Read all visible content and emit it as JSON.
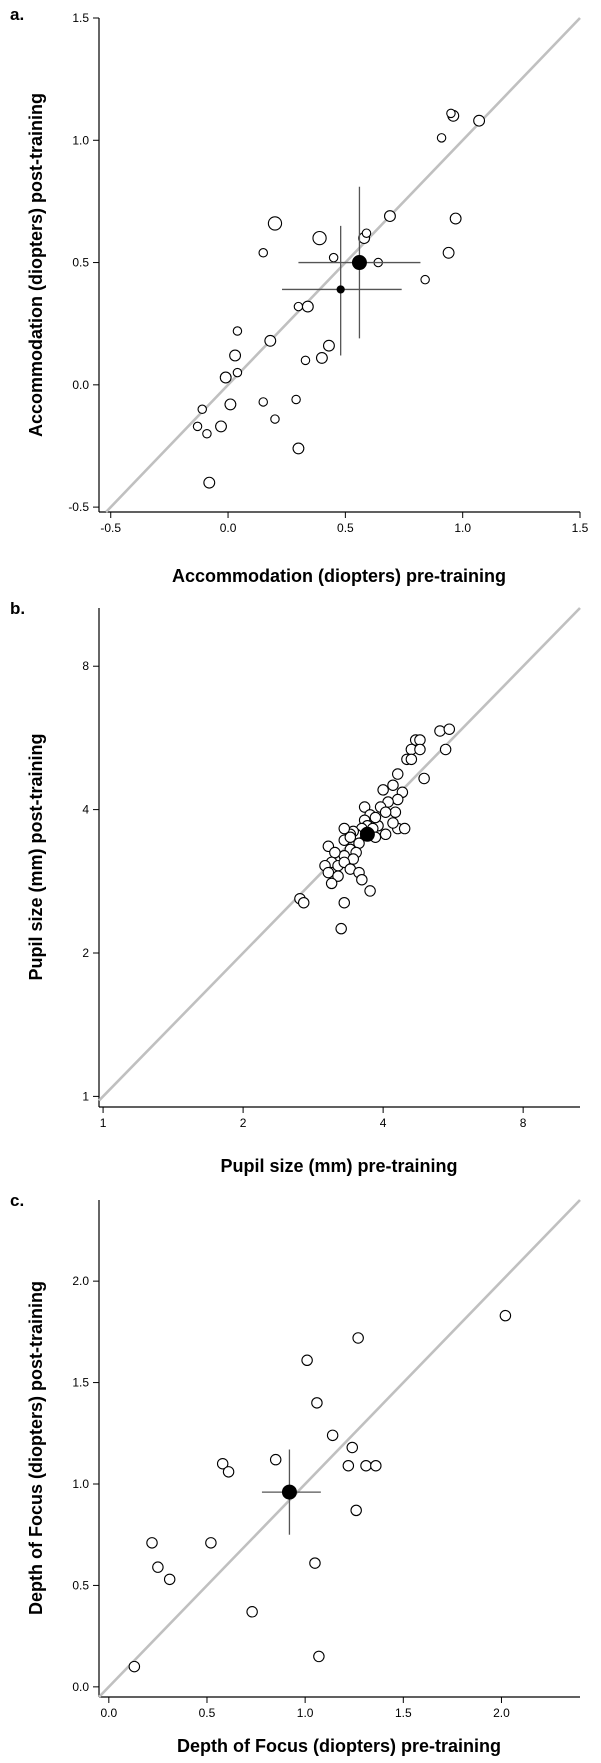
{
  "chart_data": [
    {
      "panel_label": "a.",
      "type": "scatter",
      "xlabel": "Accommodation (diopters) pre-training",
      "ylabel": "Accommodation (diopters)  post-training",
      "xlim": [
        -0.55,
        1.5
      ],
      "ylim": [
        -0.52,
        1.5
      ],
      "x_scale": "linear",
      "y_scale": "linear",
      "xticks": [
        -0.5,
        0.0,
        0.5,
        1.0,
        1.5
      ],
      "yticks": [
        -0.5,
        0.0,
        0.5,
        1.0,
        1.5
      ],
      "xtick_labels": [
        "-0.5",
        "0.0",
        "0.5",
        "1.0",
        "1.5"
      ],
      "ytick_labels": [
        "-0.5",
        "0.0",
        "0.5",
        "1.0",
        "1.5"
      ],
      "identity_line": true,
      "grid": false,
      "line_color": "#c0c0c0",
      "points": [
        {
          "x": 0.2,
          "y": 0.66,
          "s": "large"
        },
        {
          "x": 0.39,
          "y": 0.6,
          "s": "large"
        },
        {
          "x": 0.15,
          "y": 0.54,
          "s": "small"
        },
        {
          "x": 0.45,
          "y": 0.52,
          "s": "small"
        },
        {
          "x": 0.58,
          "y": 0.6,
          "s": "medium"
        },
        {
          "x": 0.59,
          "y": 0.62,
          "s": "small"
        },
        {
          "x": 0.64,
          "y": 0.5,
          "s": "small"
        },
        {
          "x": 0.69,
          "y": 0.69,
          "s": "medium"
        },
        {
          "x": 0.96,
          "y": 1.1,
          "s": "medium"
        },
        {
          "x": 0.95,
          "y": 1.11,
          "s": "small"
        },
        {
          "x": 0.91,
          "y": 1.01,
          "s": "small"
        },
        {
          "x": 1.07,
          "y": 1.08,
          "s": "medium"
        },
        {
          "x": 0.97,
          "y": 0.68,
          "s": "medium"
        },
        {
          "x": 0.94,
          "y": 0.54,
          "s": "medium"
        },
        {
          "x": 0.84,
          "y": 0.43,
          "s": "small"
        },
        {
          "x": 0.04,
          "y": 0.22,
          "s": "small"
        },
        {
          "x": 0.3,
          "y": 0.32,
          "s": "small"
        },
        {
          "x": 0.34,
          "y": 0.32,
          "s": "medium"
        },
        {
          "x": 0.18,
          "y": 0.18,
          "s": "medium"
        },
        {
          "x": 0.03,
          "y": 0.12,
          "s": "medium"
        },
        {
          "x": 0.04,
          "y": 0.05,
          "s": "small"
        },
        {
          "x": -0.01,
          "y": 0.03,
          "s": "medium"
        },
        {
          "x": 0.43,
          "y": 0.16,
          "s": "medium"
        },
        {
          "x": 0.4,
          "y": 0.11,
          "s": "medium"
        },
        {
          "x": 0.33,
          "y": 0.1,
          "s": "small"
        },
        {
          "x": 0.01,
          "y": -0.08,
          "s": "medium"
        },
        {
          "x": -0.11,
          "y": -0.1,
          "s": "small"
        },
        {
          "x": 0.15,
          "y": -0.07,
          "s": "small"
        },
        {
          "x": 0.2,
          "y": -0.14,
          "s": "small"
        },
        {
          "x": 0.29,
          "y": -0.06,
          "s": "small"
        },
        {
          "x": -0.13,
          "y": -0.17,
          "s": "small"
        },
        {
          "x": -0.03,
          "y": -0.17,
          "s": "medium"
        },
        {
          "x": -0.09,
          "y": -0.2,
          "s": "small"
        },
        {
          "x": 0.3,
          "y": -0.26,
          "s": "medium"
        },
        {
          "x": -0.08,
          "y": -0.4,
          "s": "medium"
        }
      ],
      "means": [
        {
          "x": 0.56,
          "y": 0.5,
          "s": "large",
          "xerr": [
            0.3,
            0.82
          ],
          "yerr": [
            0.19,
            0.81
          ]
        },
        {
          "x": 0.48,
          "y": 0.39,
          "s": "small",
          "xerr": [
            0.23,
            0.74
          ],
          "yerr": [
            0.12,
            0.65
          ]
        }
      ]
    },
    {
      "panel_label": "b.",
      "type": "scatter",
      "xlabel": "Pupil size (mm) pre-training",
      "ylabel": "Pupil size (mm) post-training",
      "xlim": [
        0.98,
        10.6
      ],
      "ylim": [
        0.95,
        10.6
      ],
      "x_scale": "log",
      "y_scale": "log",
      "xticks": [
        1,
        2,
        4,
        8
      ],
      "yticks": [
        1,
        2,
        4,
        8
      ],
      "xtick_labels": [
        "1",
        "2",
        "4",
        "8"
      ],
      "ytick_labels": [
        "1",
        "2",
        "4",
        "8"
      ],
      "identity_line": true,
      "grid": false,
      "line_color": "#c0c0c0",
      "points": [
        {
          "x": 5.3,
          "y": 5.85
        },
        {
          "x": 5.55,
          "y": 5.9
        },
        {
          "x": 5.45,
          "y": 5.35
        },
        {
          "x": 4.7,
          "y": 5.6
        },
        {
          "x": 4.8,
          "y": 5.6
        },
        {
          "x": 4.6,
          "y": 5.35
        },
        {
          "x": 4.8,
          "y": 5.35
        },
        {
          "x": 4.5,
          "y": 5.1
        },
        {
          "x": 4.6,
          "y": 5.1
        },
        {
          "x": 4.3,
          "y": 4.75
        },
        {
          "x": 4.9,
          "y": 4.65
        },
        {
          "x": 4.2,
          "y": 4.5
        },
        {
          "x": 4.4,
          "y": 4.35
        },
        {
          "x": 4.3,
          "y": 4.2
        },
        {
          "x": 4.0,
          "y": 4.4
        },
        {
          "x": 4.1,
          "y": 4.15
        },
        {
          "x": 4.25,
          "y": 3.95
        },
        {
          "x": 3.95,
          "y": 4.05
        },
        {
          "x": 4.05,
          "y": 3.95
        },
        {
          "x": 4.3,
          "y": 3.65
        },
        {
          "x": 4.2,
          "y": 3.75
        },
        {
          "x": 3.9,
          "y": 3.7
        },
        {
          "x": 4.05,
          "y": 3.55
        },
        {
          "x": 4.45,
          "y": 3.65
        },
        {
          "x": 3.65,
          "y": 4.05
        },
        {
          "x": 3.75,
          "y": 3.9
        },
        {
          "x": 3.85,
          "y": 3.85
        },
        {
          "x": 3.65,
          "y": 3.8
        },
        {
          "x": 3.7,
          "y": 3.7
        },
        {
          "x": 3.6,
          "y": 3.65
        },
        {
          "x": 3.8,
          "y": 3.65
        },
        {
          "x": 3.5,
          "y": 3.55
        },
        {
          "x": 3.85,
          "y": 3.5
        },
        {
          "x": 3.45,
          "y": 3.6
        },
        {
          "x": 3.4,
          "y": 3.55
        },
        {
          "x": 3.3,
          "y": 3.65
        },
        {
          "x": 3.3,
          "y": 3.45
        },
        {
          "x": 3.55,
          "y": 3.4
        },
        {
          "x": 3.4,
          "y": 3.3
        },
        {
          "x": 3.5,
          "y": 3.25
        },
        {
          "x": 3.3,
          "y": 3.2
        },
        {
          "x": 3.45,
          "y": 3.15
        },
        {
          "x": 3.05,
          "y": 3.35
        },
        {
          "x": 3.15,
          "y": 3.25
        },
        {
          "x": 3.1,
          "y": 3.1
        },
        {
          "x": 3.0,
          "y": 3.05
        },
        {
          "x": 3.2,
          "y": 3.05
        },
        {
          "x": 3.3,
          "y": 3.1
        },
        {
          "x": 3.4,
          "y": 3.0
        },
        {
          "x": 3.05,
          "y": 2.95
        },
        {
          "x": 3.2,
          "y": 2.9
        },
        {
          "x": 3.1,
          "y": 2.8
        },
        {
          "x": 3.55,
          "y": 2.95
        },
        {
          "x": 3.6,
          "y": 2.85
        },
        {
          "x": 3.4,
          "y": 3.5
        },
        {
          "x": 3.75,
          "y": 2.7
        },
        {
          "x": 3.3,
          "y": 2.55
        },
        {
          "x": 2.65,
          "y": 2.6
        },
        {
          "x": 2.7,
          "y": 2.55
        },
        {
          "x": 3.25,
          "y": 2.25
        }
      ],
      "means": [
        {
          "x": 3.7,
          "y": 3.55,
          "s": "large"
        }
      ]
    },
    {
      "panel_label": "c.",
      "type": "scatter",
      "xlabel": "Depth of Focus (diopters) pre-training",
      "ylabel": "Depth of Focus (diopters)  post-training",
      "xlim": [
        -0.05,
        2.4
      ],
      "ylim": [
        -0.05,
        2.4
      ],
      "x_scale": "linear",
      "y_scale": "linear",
      "xticks": [
        0.0,
        0.5,
        1.0,
        1.5,
        2.0
      ],
      "yticks": [
        0.0,
        0.5,
        1.0,
        1.5,
        2.0
      ],
      "xtick_labels": [
        "0.0",
        "0.5",
        "1.0",
        "1.5",
        "2.0"
      ],
      "ytick_labels": [
        "0.0",
        "0.5",
        "1.0",
        "1.5",
        "2.0"
      ],
      "identity_line": true,
      "grid": false,
      "line_color": "#c0c0c0",
      "points": [
        {
          "x": 2.02,
          "y": 1.83
        },
        {
          "x": 1.27,
          "y": 1.72
        },
        {
          "x": 1.01,
          "y": 1.61
        },
        {
          "x": 1.06,
          "y": 1.4
        },
        {
          "x": 1.14,
          "y": 1.24
        },
        {
          "x": 1.24,
          "y": 1.18
        },
        {
          "x": 1.22,
          "y": 1.09
        },
        {
          "x": 1.31,
          "y": 1.09
        },
        {
          "x": 1.36,
          "y": 1.09
        },
        {
          "x": 0.58,
          "y": 1.1
        },
        {
          "x": 0.61,
          "y": 1.06
        },
        {
          "x": 0.85,
          "y": 1.12
        },
        {
          "x": 1.26,
          "y": 0.87
        },
        {
          "x": 0.22,
          "y": 0.71
        },
        {
          "x": 0.52,
          "y": 0.71
        },
        {
          "x": 0.25,
          "y": 0.59
        },
        {
          "x": 0.31,
          "y": 0.53
        },
        {
          "x": 1.05,
          "y": 0.61
        },
        {
          "x": 0.73,
          "y": 0.37
        },
        {
          "x": 1.07,
          "y": 0.15
        },
        {
          "x": 0.13,
          "y": 0.1
        }
      ],
      "means": [
        {
          "x": 0.92,
          "y": 0.96,
          "s": "large",
          "xerr": [
            0.78,
            1.08
          ],
          "yerr": [
            0.75,
            1.17
          ]
        }
      ]
    }
  ]
}
